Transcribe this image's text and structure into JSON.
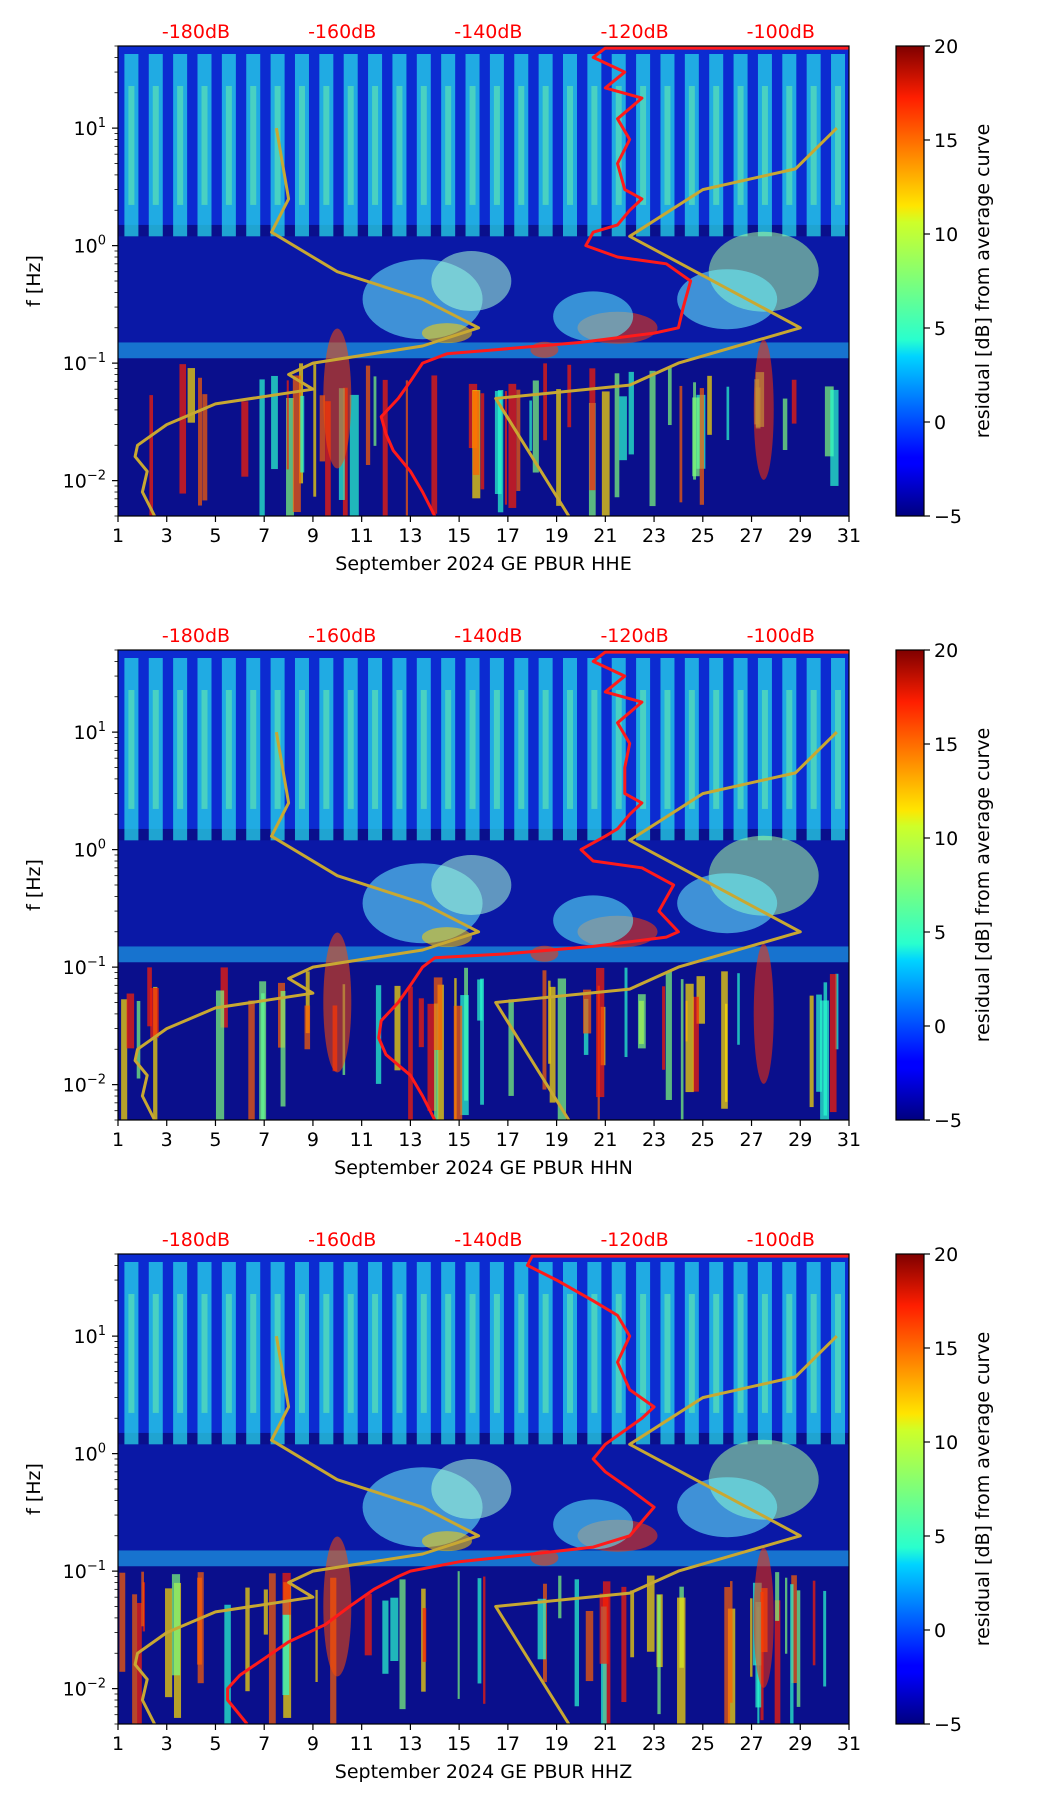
{
  "colors": {
    "curve_red": "#ff1a1a",
    "curve_olive": "#c8a832",
    "top_label": "#ff0000",
    "colormap": "jet"
  },
  "chart_data": [
    {
      "type": "heatmap",
      "xlabel": "September 2024 GE PBUR  HHE",
      "ylabel": "f [Hz]",
      "x_ticks": [
        "1",
        "3",
        "5",
        "7",
        "9",
        "11",
        "13",
        "15",
        "17",
        "19",
        "21",
        "23",
        "25",
        "27",
        "29",
        "31"
      ],
      "x_tick_values": [
        1,
        3,
        5,
        7,
        9,
        11,
        13,
        15,
        17,
        19,
        21,
        23,
        25,
        27,
        29,
        31
      ],
      "xlim": [
        1,
        31
      ],
      "y_scale": "log",
      "ylim": [
        0.005,
        50
      ],
      "y_ticks": [
        {
          "value": 0.01,
          "base": "10",
          "exp": "−2"
        },
        {
          "value": 0.1,
          "base": "10",
          "exp": "−1"
        },
        {
          "value": 1,
          "base": "10",
          "exp": "0"
        },
        {
          "value": 10,
          "base": "10",
          "exp": "1"
        }
      ],
      "top_labels": [
        "-180dB",
        "-160dB",
        "-140dB",
        "-120dB",
        "-100dB"
      ],
      "top_label_x": [
        7,
        13,
        19,
        25,
        31
      ],
      "colorbar": {
        "label": "residual [dB] from average curve",
        "range": [
          -5,
          20
        ],
        "ticks": [
          "−5",
          "0",
          "5",
          "10",
          "15",
          "20"
        ],
        "tick_values": [
          -5,
          0,
          5,
          10,
          15,
          20
        ]
      },
      "red_curve": [
        [
          14.0,
          0.005
        ],
        [
          13.5,
          0.008
        ],
        [
          13.0,
          0.012
        ],
        [
          12.3,
          0.018
        ],
        [
          12.0,
          0.025
        ],
        [
          11.8,
          0.035
        ],
        [
          12.5,
          0.05
        ],
        [
          13.0,
          0.07
        ],
        [
          13.5,
          0.1
        ],
        [
          14.5,
          0.12
        ],
        [
          16.5,
          0.13
        ],
        [
          20.0,
          0.15
        ],
        [
          23.0,
          0.18
        ],
        [
          24.0,
          0.2
        ],
        [
          24.2,
          0.3
        ],
        [
          24.5,
          0.5
        ],
        [
          23.5,
          0.7
        ],
        [
          21.5,
          0.8
        ],
        [
          20.2,
          1.0
        ],
        [
          20.5,
          1.3
        ],
        [
          21.5,
          1.5
        ],
        [
          22.0,
          2.0
        ],
        [
          22.5,
          2.5
        ],
        [
          21.8,
          3.0
        ],
        [
          21.5,
          5.0
        ],
        [
          22.0,
          8.0
        ],
        [
          21.5,
          12.0
        ],
        [
          22.5,
          18.0
        ],
        [
          21.0,
          22.0
        ],
        [
          21.8,
          30.0
        ],
        [
          20.5,
          40.0
        ],
        [
          21.0,
          48.0
        ],
        [
          31.0,
          48.0
        ]
      ],
      "olive_curve_left": [
        [
          2.5,
          0.005
        ],
        [
          2.0,
          0.008
        ],
        [
          2.2,
          0.012
        ],
        [
          1.7,
          0.016
        ],
        [
          1.8,
          0.02
        ],
        [
          3.0,
          0.03
        ],
        [
          5.0,
          0.045
        ],
        [
          9.0,
          0.06
        ],
        [
          8.0,
          0.08
        ],
        [
          9.0,
          0.1
        ],
        [
          13.5,
          0.14
        ],
        [
          15.8,
          0.2
        ],
        [
          13.5,
          0.35
        ],
        [
          10.0,
          0.6
        ],
        [
          7.3,
          1.3
        ],
        [
          8.0,
          2.5
        ],
        [
          7.5,
          10.0
        ]
      ],
      "olive_curve_right": [
        [
          19.5,
          0.005
        ],
        [
          16.5,
          0.05
        ],
        [
          22.0,
          0.065
        ],
        [
          24.0,
          0.1
        ],
        [
          29.0,
          0.2
        ],
        [
          22.0,
          1.2
        ],
        [
          25.0,
          3.0
        ],
        [
          28.8,
          4.5
        ],
        [
          30.5,
          10.0
        ]
      ]
    },
    {
      "type": "heatmap",
      "xlabel": "September 2024 GE PBUR  HHN",
      "ylabel": "f [Hz]",
      "x_ticks": [
        "1",
        "3",
        "5",
        "7",
        "9",
        "11",
        "13",
        "15",
        "17",
        "19",
        "21",
        "23",
        "25",
        "27",
        "29",
        "31"
      ],
      "x_tick_values": [
        1,
        3,
        5,
        7,
        9,
        11,
        13,
        15,
        17,
        19,
        21,
        23,
        25,
        27,
        29,
        31
      ],
      "xlim": [
        1,
        31
      ],
      "y_scale": "log",
      "ylim": [
        0.005,
        50
      ],
      "y_ticks": [
        {
          "value": 0.01,
          "base": "10",
          "exp": "−2"
        },
        {
          "value": 0.1,
          "base": "10",
          "exp": "−1"
        },
        {
          "value": 1,
          "base": "10",
          "exp": "0"
        },
        {
          "value": 10,
          "base": "10",
          "exp": "1"
        }
      ],
      "top_labels": [
        "-180dB",
        "-160dB",
        "-140dB",
        "-120dB",
        "-100dB"
      ],
      "top_label_x": [
        7,
        13,
        19,
        25,
        31
      ],
      "colorbar": {
        "label": "residual [dB] from average curve",
        "range": [
          -5,
          20
        ],
        "ticks": [
          "−5",
          "0",
          "5",
          "10",
          "15",
          "20"
        ],
        "tick_values": [
          -5,
          0,
          5,
          10,
          15,
          20
        ]
      },
      "red_curve": [
        [
          14.0,
          0.005
        ],
        [
          13.5,
          0.008
        ],
        [
          13.0,
          0.012
        ],
        [
          12.0,
          0.018
        ],
        [
          11.7,
          0.025
        ],
        [
          11.8,
          0.035
        ],
        [
          12.5,
          0.05
        ],
        [
          13.0,
          0.07
        ],
        [
          13.5,
          0.1
        ],
        [
          14.0,
          0.12
        ],
        [
          17.0,
          0.13
        ],
        [
          20.5,
          0.15
        ],
        [
          23.5,
          0.18
        ],
        [
          24.0,
          0.2
        ],
        [
          23.2,
          0.3
        ],
        [
          23.8,
          0.5
        ],
        [
          22.5,
          0.7
        ],
        [
          20.5,
          0.8
        ],
        [
          20.0,
          1.0
        ],
        [
          21.0,
          1.3
        ],
        [
          21.5,
          1.5
        ],
        [
          22.0,
          2.0
        ],
        [
          22.5,
          2.5
        ],
        [
          21.8,
          3.0
        ],
        [
          21.8,
          5.0
        ],
        [
          22.0,
          8.0
        ],
        [
          21.5,
          12.0
        ],
        [
          22.5,
          18.0
        ],
        [
          21.0,
          22.0
        ],
        [
          21.8,
          30.0
        ],
        [
          20.5,
          40.0
        ],
        [
          21.0,
          48.0
        ],
        [
          31.0,
          48.0
        ]
      ],
      "olive_curve_left": [
        [
          2.5,
          0.005
        ],
        [
          2.0,
          0.008
        ],
        [
          2.2,
          0.012
        ],
        [
          1.7,
          0.016
        ],
        [
          1.8,
          0.02
        ],
        [
          3.0,
          0.03
        ],
        [
          5.0,
          0.045
        ],
        [
          9.0,
          0.06
        ],
        [
          8.0,
          0.08
        ],
        [
          9.0,
          0.1
        ],
        [
          13.5,
          0.14
        ],
        [
          15.8,
          0.2
        ],
        [
          13.5,
          0.35
        ],
        [
          10.0,
          0.6
        ],
        [
          7.3,
          1.3
        ],
        [
          8.0,
          2.5
        ],
        [
          7.5,
          10.0
        ]
      ],
      "olive_curve_right": [
        [
          19.5,
          0.005
        ],
        [
          16.5,
          0.05
        ],
        [
          22.0,
          0.065
        ],
        [
          24.0,
          0.1
        ],
        [
          29.0,
          0.2
        ],
        [
          22.0,
          1.2
        ],
        [
          25.0,
          3.0
        ],
        [
          28.8,
          4.5
        ],
        [
          30.5,
          10.0
        ]
      ]
    },
    {
      "type": "heatmap",
      "xlabel": "September 2024 GE PBUR  HHZ",
      "ylabel": "f [Hz]",
      "x_ticks": [
        "1",
        "3",
        "5",
        "7",
        "9",
        "11",
        "13",
        "15",
        "17",
        "19",
        "21",
        "23",
        "25",
        "27",
        "29",
        "31"
      ],
      "x_tick_values": [
        1,
        3,
        5,
        7,
        9,
        11,
        13,
        15,
        17,
        19,
        21,
        23,
        25,
        27,
        29,
        31
      ],
      "xlim": [
        1,
        31
      ],
      "y_scale": "log",
      "ylim": [
        0.005,
        50
      ],
      "y_ticks": [
        {
          "value": 0.01,
          "base": "10",
          "exp": "−2"
        },
        {
          "value": 0.1,
          "base": "10",
          "exp": "−1"
        },
        {
          "value": 1,
          "base": "10",
          "exp": "0"
        },
        {
          "value": 10,
          "base": "10",
          "exp": "1"
        }
      ],
      "top_labels": [
        "-180dB",
        "-160dB",
        "-140dB",
        "-120dB",
        "-100dB"
      ],
      "top_label_x": [
        7,
        13,
        19,
        25,
        31
      ],
      "colorbar": {
        "label": "residual [dB] from average curve",
        "range": [
          -5,
          20
        ],
        "ticks": [
          "−5",
          "0",
          "5",
          "10",
          "15",
          "20"
        ],
        "tick_values": [
          -5,
          0,
          5,
          10,
          15,
          20
        ]
      },
      "red_curve": [
        [
          6.3,
          0.005
        ],
        [
          5.5,
          0.008
        ],
        [
          5.5,
          0.01
        ],
        [
          6.0,
          0.013
        ],
        [
          7.0,
          0.018
        ],
        [
          8.0,
          0.025
        ],
        [
          9.5,
          0.035
        ],
        [
          10.5,
          0.05
        ],
        [
          11.5,
          0.07
        ],
        [
          12.5,
          0.09
        ],
        [
          13.0,
          0.1
        ],
        [
          15.0,
          0.12
        ],
        [
          18.0,
          0.14
        ],
        [
          20.5,
          0.16
        ],
        [
          22.0,
          0.2
        ],
        [
          23.0,
          0.35
        ],
        [
          22.0,
          0.5
        ],
        [
          21.0,
          0.7
        ],
        [
          20.5,
          0.9
        ],
        [
          21.0,
          1.2
        ],
        [
          22.5,
          2.0
        ],
        [
          23.0,
          2.5
        ],
        [
          22.0,
          3.5
        ],
        [
          21.5,
          6.0
        ],
        [
          22.0,
          10.0
        ],
        [
          21.5,
          15.0
        ],
        [
          20.5,
          20.0
        ],
        [
          19.0,
          30.0
        ],
        [
          17.8,
          40.0
        ],
        [
          18.0,
          48.0
        ],
        [
          31.0,
          48.0
        ]
      ],
      "olive_curve_left": [
        [
          2.5,
          0.005
        ],
        [
          2.0,
          0.008
        ],
        [
          2.2,
          0.012
        ],
        [
          1.7,
          0.016
        ],
        [
          1.8,
          0.02
        ],
        [
          3.0,
          0.03
        ],
        [
          5.0,
          0.045
        ],
        [
          9.0,
          0.06
        ],
        [
          8.0,
          0.08
        ],
        [
          9.0,
          0.1
        ],
        [
          13.5,
          0.14
        ],
        [
          15.8,
          0.2
        ],
        [
          13.5,
          0.35
        ],
        [
          10.0,
          0.6
        ],
        [
          7.3,
          1.3
        ],
        [
          8.0,
          2.5
        ],
        [
          7.5,
          10.0
        ]
      ],
      "olive_curve_right": [
        [
          19.5,
          0.005
        ],
        [
          16.5,
          0.05
        ],
        [
          22.0,
          0.065
        ],
        [
          24.0,
          0.1
        ],
        [
          29.0,
          0.2
        ],
        [
          22.0,
          1.2
        ],
        [
          25.0,
          3.0
        ],
        [
          28.8,
          4.5
        ],
        [
          30.5,
          10.0
        ]
      ]
    }
  ]
}
